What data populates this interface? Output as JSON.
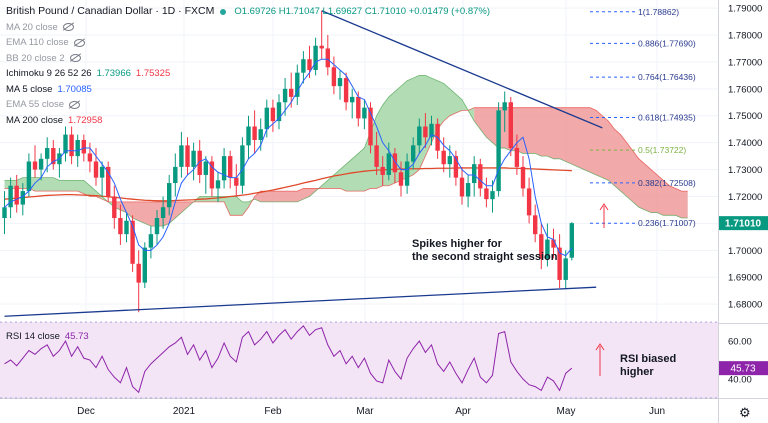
{
  "header": {
    "title": "British Pound / Canadian Dollar · 1D · FXCM",
    "ohlc": "O1.69726 H1.71047 L1.69627 C1.71010 +0.01479 (+0.87%)"
  },
  "indicators": [
    {
      "label": "MA 20 close",
      "values": [],
      "hidden": true
    },
    {
      "label": "EMA 110 close",
      "values": [],
      "hidden": true
    },
    {
      "label": "BB 20 close 2",
      "values": [],
      "hidden": true
    },
    {
      "label": "Ichimoku 9 26 52 26",
      "values": [
        {
          "text": "1.73966",
          "color": "#089981"
        },
        {
          "text": "1.75325",
          "color": "#f23645"
        }
      ],
      "hidden": false
    },
    {
      "label": "MA 5 close",
      "values": [
        {
          "text": "1.70085",
          "color": "#2962ff"
        }
      ],
      "hidden": false
    },
    {
      "label": "EMA 55 close",
      "values": [],
      "hidden": true
    },
    {
      "label": "MA 200 close",
      "values": [
        {
          "text": "1.72958",
          "color": "#f23645"
        }
      ],
      "hidden": false
    }
  ],
  "colors": {
    "up": "#089981",
    "down": "#f23645",
    "ma5": "#2962ff",
    "ma200": "#e04a2a",
    "cloud_bull": "#a5d6a7",
    "cloud_bear": "#ef9a9a",
    "trendline": "#1a3a8f",
    "fib": "#2962ff",
    "rsi": "#8e24aa",
    "rsi_band": "#f3e5f5",
    "price_box": "#089981"
  },
  "chart_data": {
    "type": "candlestick",
    "y_axis": {
      "ticks": [
        "1.79000",
        "1.78000",
        "1.77000",
        "1.76000",
        "1.75000",
        "1.74000",
        "1.73000",
        "1.72000",
        "1.71000",
        "1.70000",
        "1.69000",
        "1.68000"
      ],
      "ylim": [
        1.673,
        1.793
      ]
    },
    "x_axis": {
      "tick_labels": [
        "Dec",
        "2021",
        "Feb",
        "Mar",
        "Apr",
        "May",
        "Jun"
      ]
    },
    "last_price": {
      "text": "1.71010",
      "value": 1.7101
    },
    "fib_levels": [
      {
        "ratio": "1",
        "value": 1.78862,
        "label": "1(1.78862)"
      },
      {
        "ratio": "0.886",
        "value": 1.7769,
        "label": "0.886(1.77690)"
      },
      {
        "ratio": "0.764",
        "value": 1.76436,
        "label": "0.764(1.76436)"
      },
      {
        "ratio": "0.618",
        "value": 1.74935,
        "label": "0.618(1.74935)"
      },
      {
        "ratio": "0.5",
        "value": 1.73722,
        "label": "0.5(1.73722)"
      },
      {
        "ratio": "0.382",
        "value": 1.72508,
        "label": "0.382(1.72508)"
      },
      {
        "ratio": "0.236",
        "value": 1.71007,
        "label": "0.236(1.71007)"
      }
    ],
    "annotations": [
      "Spikes higher for the second straight session"
    ],
    "candles": [
      {
        "o": 1.712,
        "h": 1.722,
        "l": 1.706,
        "c": 1.716
      },
      {
        "o": 1.716,
        "h": 1.727,
        "l": 1.712,
        "c": 1.724
      },
      {
        "o": 1.724,
        "h": 1.728,
        "l": 1.714,
        "c": 1.717
      },
      {
        "o": 1.717,
        "h": 1.725,
        "l": 1.713,
        "c": 1.722
      },
      {
        "o": 1.722,
        "h": 1.736,
        "l": 1.72,
        "c": 1.733
      },
      {
        "o": 1.733,
        "h": 1.739,
        "l": 1.727,
        "c": 1.73
      },
      {
        "o": 1.73,
        "h": 1.736,
        "l": 1.726,
        "c": 1.734
      },
      {
        "o": 1.734,
        "h": 1.742,
        "l": 1.729,
        "c": 1.738
      },
      {
        "o": 1.738,
        "h": 1.741,
        "l": 1.73,
        "c": 1.732
      },
      {
        "o": 1.732,
        "h": 1.738,
        "l": 1.727,
        "c": 1.736
      },
      {
        "o": 1.736,
        "h": 1.746,
        "l": 1.733,
        "c": 1.743
      },
      {
        "o": 1.743,
        "h": 1.746,
        "l": 1.732,
        "c": 1.735
      },
      {
        "o": 1.735,
        "h": 1.743,
        "l": 1.731,
        "c": 1.741
      },
      {
        "o": 1.741,
        "h": 1.743,
        "l": 1.733,
        "c": 1.736
      },
      {
        "o": 1.736,
        "h": 1.74,
        "l": 1.729,
        "c": 1.733
      },
      {
        "o": 1.733,
        "h": 1.738,
        "l": 1.724,
        "c": 1.727
      },
      {
        "o": 1.727,
        "h": 1.733,
        "l": 1.72,
        "c": 1.731
      },
      {
        "o": 1.731,
        "h": 1.733,
        "l": 1.718,
        "c": 1.72
      },
      {
        "o": 1.72,
        "h": 1.724,
        "l": 1.708,
        "c": 1.712
      },
      {
        "o": 1.712,
        "h": 1.717,
        "l": 1.702,
        "c": 1.706
      },
      {
        "o": 1.706,
        "h": 1.714,
        "l": 1.703,
        "c": 1.711
      },
      {
        "o": 1.711,
        "h": 1.713,
        "l": 1.692,
        "c": 1.695
      },
      {
        "o": 1.695,
        "h": 1.7,
        "l": 1.677,
        "c": 1.688
      },
      {
        "o": 1.688,
        "h": 1.703,
        "l": 1.686,
        "c": 1.701
      },
      {
        "o": 1.701,
        "h": 1.709,
        "l": 1.697,
        "c": 1.706
      },
      {
        "o": 1.706,
        "h": 1.715,
        "l": 1.702,
        "c": 1.712
      },
      {
        "o": 1.712,
        "h": 1.72,
        "l": 1.708,
        "c": 1.716
      },
      {
        "o": 1.716,
        "h": 1.728,
        "l": 1.713,
        "c": 1.725
      },
      {
        "o": 1.725,
        "h": 1.736,
        "l": 1.72,
        "c": 1.731
      },
      {
        "o": 1.731,
        "h": 1.744,
        "l": 1.727,
        "c": 1.739
      },
      {
        "o": 1.739,
        "h": 1.742,
        "l": 1.728,
        "c": 1.731
      },
      {
        "o": 1.731,
        "h": 1.74,
        "l": 1.726,
        "c": 1.737
      },
      {
        "o": 1.737,
        "h": 1.741,
        "l": 1.725,
        "c": 1.728
      },
      {
        "o": 1.728,
        "h": 1.735,
        "l": 1.721,
        "c": 1.733
      },
      {
        "o": 1.733,
        "h": 1.735,
        "l": 1.72,
        "c": 1.723
      },
      {
        "o": 1.723,
        "h": 1.729,
        "l": 1.718,
        "c": 1.726
      },
      {
        "o": 1.726,
        "h": 1.738,
        "l": 1.723,
        "c": 1.735
      },
      {
        "o": 1.735,
        "h": 1.737,
        "l": 1.723,
        "c": 1.727
      },
      {
        "o": 1.727,
        "h": 1.732,
        "l": 1.72,
        "c": 1.724
      },
      {
        "o": 1.724,
        "h": 1.742,
        "l": 1.721,
        "c": 1.739
      },
      {
        "o": 1.739,
        "h": 1.75,
        "l": 1.734,
        "c": 1.746
      },
      {
        "o": 1.746,
        "h": 1.752,
        "l": 1.736,
        "c": 1.741
      },
      {
        "o": 1.741,
        "h": 1.749,
        "l": 1.737,
        "c": 1.745
      },
      {
        "o": 1.745,
        "h": 1.756,
        "l": 1.742,
        "c": 1.753
      },
      {
        "o": 1.753,
        "h": 1.756,
        "l": 1.744,
        "c": 1.748
      },
      {
        "o": 1.748,
        "h": 1.758,
        "l": 1.745,
        "c": 1.755
      },
      {
        "o": 1.755,
        "h": 1.764,
        "l": 1.75,
        "c": 1.76
      },
      {
        "o": 1.76,
        "h": 1.766,
        "l": 1.753,
        "c": 1.757
      },
      {
        "o": 1.757,
        "h": 1.769,
        "l": 1.754,
        "c": 1.766
      },
      {
        "o": 1.766,
        "h": 1.774,
        "l": 1.762,
        "c": 1.771
      },
      {
        "o": 1.771,
        "h": 1.776,
        "l": 1.764,
        "c": 1.767
      },
      {
        "o": 1.767,
        "h": 1.779,
        "l": 1.765,
        "c": 1.776
      },
      {
        "o": 1.776,
        "h": 1.789,
        "l": 1.771,
        "c": 1.775
      },
      {
        "o": 1.775,
        "h": 1.78,
        "l": 1.765,
        "c": 1.768
      },
      {
        "o": 1.768,
        "h": 1.772,
        "l": 1.758,
        "c": 1.761
      },
      {
        "o": 1.761,
        "h": 1.767,
        "l": 1.756,
        "c": 1.764
      },
      {
        "o": 1.764,
        "h": 1.766,
        "l": 1.752,
        "c": 1.755
      },
      {
        "o": 1.755,
        "h": 1.76,
        "l": 1.749,
        "c": 1.757
      },
      {
        "o": 1.757,
        "h": 1.759,
        "l": 1.746,
        "c": 1.749
      },
      {
        "o": 1.749,
        "h": 1.756,
        "l": 1.745,
        "c": 1.753
      },
      {
        "o": 1.753,
        "h": 1.755,
        "l": 1.736,
        "c": 1.739
      },
      {
        "o": 1.739,
        "h": 1.744,
        "l": 1.728,
        "c": 1.731
      },
      {
        "o": 1.731,
        "h": 1.735,
        "l": 1.724,
        "c": 1.728
      },
      {
        "o": 1.728,
        "h": 1.74,
        "l": 1.726,
        "c": 1.736
      },
      {
        "o": 1.736,
        "h": 1.738,
        "l": 1.725,
        "c": 1.729
      },
      {
        "o": 1.729,
        "h": 1.733,
        "l": 1.72,
        "c": 1.724
      },
      {
        "o": 1.724,
        "h": 1.736,
        "l": 1.721,
        "c": 1.733
      },
      {
        "o": 1.733,
        "h": 1.742,
        "l": 1.73,
        "c": 1.739
      },
      {
        "o": 1.739,
        "h": 1.749,
        "l": 1.736,
        "c": 1.746
      },
      {
        "o": 1.746,
        "h": 1.751,
        "l": 1.738,
        "c": 1.742
      },
      {
        "o": 1.742,
        "h": 1.75,
        "l": 1.739,
        "c": 1.747
      },
      {
        "o": 1.747,
        "h": 1.749,
        "l": 1.734,
        "c": 1.737
      },
      {
        "o": 1.737,
        "h": 1.742,
        "l": 1.729,
        "c": 1.732
      },
      {
        "o": 1.732,
        "h": 1.739,
        "l": 1.727,
        "c": 1.735
      },
      {
        "o": 1.735,
        "h": 1.737,
        "l": 1.724,
        "c": 1.727
      },
      {
        "o": 1.727,
        "h": 1.731,
        "l": 1.717,
        "c": 1.72
      },
      {
        "o": 1.72,
        "h": 1.728,
        "l": 1.716,
        "c": 1.725
      },
      {
        "o": 1.725,
        "h": 1.735,
        "l": 1.72,
        "c": 1.732
      },
      {
        "o": 1.732,
        "h": 1.734,
        "l": 1.72,
        "c": 1.723
      },
      {
        "o": 1.723,
        "h": 1.727,
        "l": 1.716,
        "c": 1.719
      },
      {
        "o": 1.719,
        "h": 1.726,
        "l": 1.714,
        "c": 1.722
      },
      {
        "o": 1.722,
        "h": 1.755,
        "l": 1.72,
        "c": 1.752
      },
      {
        "o": 1.752,
        "h": 1.759,
        "l": 1.744,
        "c": 1.755
      },
      {
        "o": 1.755,
        "h": 1.757,
        "l": 1.735,
        "c": 1.738
      },
      {
        "o": 1.738,
        "h": 1.743,
        "l": 1.728,
        "c": 1.731
      },
      {
        "o": 1.731,
        "h": 1.735,
        "l": 1.72,
        "c": 1.723
      },
      {
        "o": 1.723,
        "h": 1.727,
        "l": 1.71,
        "c": 1.713
      },
      {
        "o": 1.713,
        "h": 1.717,
        "l": 1.703,
        "c": 1.706
      },
      {
        "o": 1.706,
        "h": 1.71,
        "l": 1.693,
        "c": 1.697
      },
      {
        "o": 1.697,
        "h": 1.71,
        "l": 1.694,
        "c": 1.704
      },
      {
        "o": 1.704,
        "h": 1.708,
        "l": 1.697,
        "c": 1.701
      },
      {
        "o": 1.701,
        "h": 1.706,
        "l": 1.686,
        "c": 1.689
      },
      {
        "o": 1.689,
        "h": 1.7,
        "l": 1.686,
        "c": 1.697
      },
      {
        "o": 1.69726,
        "h": 1.71047,
        "l": 1.69627,
        "c": 1.7101
      }
    ],
    "rsi": {
      "label": "RSI 14 close",
      "current": "45.73",
      "ticks": [
        "60.00",
        "40.00"
      ],
      "ylim": [
        30,
        69
      ],
      "values": [
        48,
        50,
        47,
        51,
        55,
        53,
        56,
        58,
        52,
        55,
        60,
        52,
        57,
        51,
        50,
        46,
        52,
        45,
        41,
        38,
        46,
        36,
        33,
        44,
        48,
        51,
        54,
        57,
        59,
        62,
        53,
        58,
        50,
        55,
        46,
        51,
        59,
        52,
        49,
        62,
        65,
        58,
        61,
        65,
        59,
        63,
        66,
        61,
        65,
        68,
        63,
        66,
        67,
        58,
        52,
        55,
        48,
        52,
        46,
        51,
        43,
        39,
        38,
        50,
        44,
        40,
        51,
        56,
        60,
        54,
        58,
        48,
        44,
        49,
        43,
        38,
        45,
        51,
        41,
        38,
        42,
        64,
        65,
        49,
        44,
        40,
        37,
        36,
        34,
        41,
        39,
        34,
        43,
        45.73
      ]
    },
    "ma5": [
      1.716,
      1.718,
      1.719,
      1.72,
      1.722,
      1.725,
      1.727,
      1.731,
      1.733,
      1.734,
      1.737,
      1.737,
      1.737,
      1.738,
      1.738,
      1.735,
      1.732,
      1.729,
      1.725,
      1.719,
      1.714,
      1.709,
      1.702,
      1.7,
      1.7,
      1.702,
      1.705,
      1.71,
      1.718,
      1.725,
      1.728,
      1.73,
      1.733,
      1.734,
      1.731,
      1.729,
      1.728,
      1.727,
      1.727,
      1.73,
      1.734,
      1.736,
      1.739,
      1.745,
      1.747,
      1.749,
      1.752,
      1.755,
      1.759,
      1.763,
      1.766,
      1.77,
      1.771,
      1.771,
      1.769,
      1.767,
      1.765,
      1.761,
      1.757,
      1.756,
      1.751,
      1.746,
      1.74,
      1.737,
      1.733,
      1.73,
      1.73,
      1.732,
      1.736,
      1.739,
      1.743,
      1.742,
      1.739,
      1.737,
      1.734,
      1.73,
      1.728,
      1.728,
      1.726,
      1.724,
      1.724,
      1.73,
      1.734,
      1.737,
      1.74,
      1.742,
      1.734,
      1.72,
      1.71,
      1.705,
      1.704,
      1.699,
      1.698,
      1.70085
    ],
    "ma200": [
      1.719,
      1.7192,
      1.7194,
      1.7196,
      1.7198,
      1.72,
      1.7202,
      1.7204,
      1.7205,
      1.7206,
      1.7207,
      1.7207,
      1.7206,
      1.7205,
      1.7204,
      1.7203,
      1.7201,
      1.7199,
      1.7197,
      1.7195,
      1.7192,
      1.719,
      1.7188,
      1.7186,
      1.7185,
      1.7184,
      1.7184,
      1.7184,
      1.7185,
      1.7186,
      1.7187,
      1.7188,
      1.719,
      1.7191,
      1.7193,
      1.7195,
      1.7197,
      1.72,
      1.7202,
      1.7205,
      1.7208,
      1.7212,
      1.7216,
      1.722,
      1.7224,
      1.7229,
      1.7234,
      1.7239,
      1.7244,
      1.725,
      1.7255,
      1.726,
      1.7266,
      1.7271,
      1.7276,
      1.728,
      1.7284,
      1.7288,
      1.7291,
      1.7294,
      1.7296,
      1.7298,
      1.7299,
      1.73,
      1.7301,
      1.7302,
      1.7302,
      1.7303,
      1.7303,
      1.7304,
      1.7304,
      1.7305,
      1.7305,
      1.7305,
      1.7306,
      1.7306,
      1.7306,
      1.7306,
      1.7306,
      1.7306,
      1.7306,
      1.7306,
      1.7306,
      1.7305,
      1.7305,
      1.7304,
      1.7303,
      1.7302,
      1.7301,
      1.73,
      1.7299,
      1.7298,
      1.7297,
      1.72958
    ],
    "cloud": {
      "span_a": [
        1.726,
        1.726,
        1.726,
        1.727,
        1.727,
        1.727,
        1.727,
        1.727,
        1.727,
        1.726,
        1.726,
        1.726,
        1.726,
        1.726,
        1.724,
        1.722,
        1.72,
        1.718,
        1.716,
        1.715,
        1.714,
        1.712,
        1.711,
        1.71,
        1.709,
        1.709,
        1.709,
        1.71,
        1.712,
        1.714,
        1.716,
        1.718,
        1.72,
        1.72,
        1.72,
        1.72,
        1.72,
        1.72,
        1.72,
        1.718,
        1.718,
        1.719,
        1.718,
        1.718,
        1.718,
        1.718,
        1.718,
        1.718,
        1.718,
        1.719,
        1.72,
        1.722,
        1.724,
        1.726,
        1.728,
        1.73,
        1.732,
        1.734,
        1.736,
        1.738,
        1.744,
        1.75,
        1.754,
        1.757,
        1.759,
        1.761,
        1.763,
        1.764,
        1.765,
        1.765,
        1.764,
        1.763,
        1.762,
        1.76,
        1.758,
        1.756,
        1.752,
        1.748,
        1.745,
        1.742,
        1.74,
        1.738,
        1.738,
        1.737,
        1.737,
        1.736,
        1.736,
        1.736,
        1.735,
        1.735,
        1.734,
        1.734,
        1.733,
        1.732,
        1.731,
        1.73,
        1.729,
        1.728,
        1.727,
        1.726,
        1.724,
        1.722,
        1.72,
        1.718,
        1.716,
        1.715,
        1.714,
        1.714,
        1.713,
        1.713,
        1.713,
        1.712,
        1.712
      ],
      "span_b": [
        1.723,
        1.723,
        1.723,
        1.723,
        1.723,
        1.722,
        1.722,
        1.722,
        1.722,
        1.722,
        1.722,
        1.722,
        1.722,
        1.721,
        1.72,
        1.72,
        1.719,
        1.718,
        1.718,
        1.718,
        1.718,
        1.718,
        1.718,
        1.718,
        1.718,
        1.718,
        1.718,
        1.718,
        1.718,
        1.718,
        1.718,
        1.718,
        1.718,
        1.718,
        1.718,
        1.718,
        1.718,
        1.713,
        1.713,
        1.713,
        1.716,
        1.72,
        1.722,
        1.722,
        1.722,
        1.722,
        1.722,
        1.722,
        1.722,
        1.723,
        1.723,
        1.723,
        1.723,
        1.723,
        1.723,
        1.723,
        1.722,
        1.722,
        1.722,
        1.722,
        1.723,
        1.723,
        1.724,
        1.724,
        1.725,
        1.726,
        1.727,
        1.728,
        1.73,
        1.735,
        1.74,
        1.745,
        1.748,
        1.75,
        1.751,
        1.752,
        1.752,
        1.753,
        1.753,
        1.753,
        1.753,
        1.753,
        1.753,
        1.753,
        1.753,
        1.753,
        1.753,
        1.753,
        1.753,
        1.753,
        1.753,
        1.753,
        1.753,
        1.753,
        1.753,
        1.753,
        1.753,
        1.752,
        1.75,
        1.748,
        1.745,
        1.743,
        1.74,
        1.737,
        1.734,
        1.732,
        1.73,
        1.728,
        1.726,
        1.724,
        1.723,
        1.722,
        1.722
      ]
    },
    "trendlines": [
      {
        "name": "upper",
        "points": [
          [
            52,
            1.789
          ],
          [
            98,
            1.7455
          ]
        ]
      },
      {
        "name": "lower",
        "points": [
          [
            0,
            1.6755
          ],
          [
            97,
            1.6863
          ]
        ]
      }
    ]
  },
  "rsi_annotation": "RSI biased higher"
}
